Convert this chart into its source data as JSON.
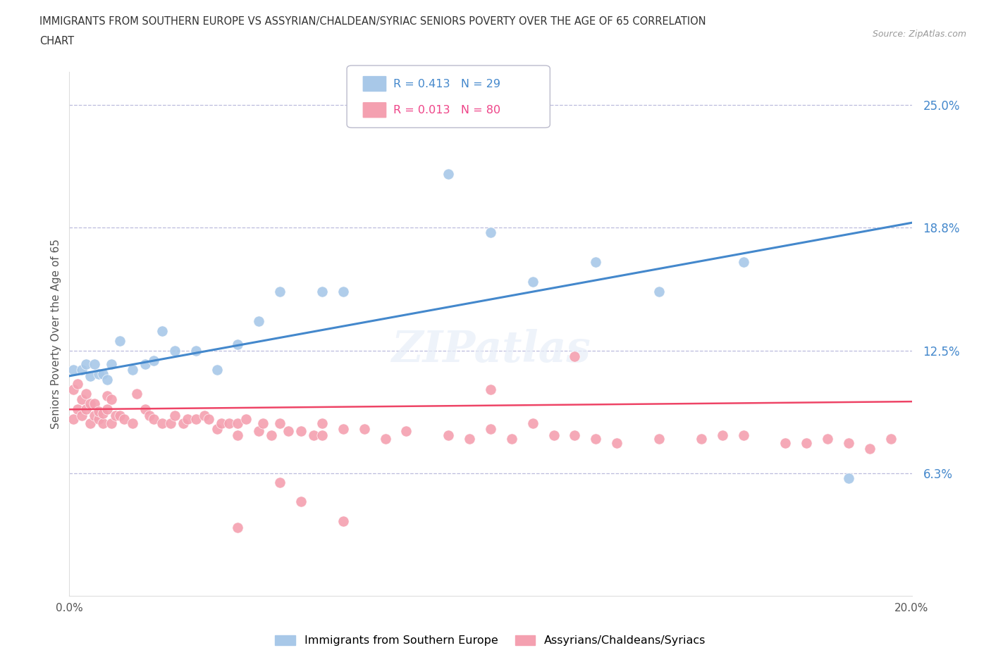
{
  "title_line1": "IMMIGRANTS FROM SOUTHERN EUROPE VS ASSYRIAN/CHALDEAN/SYRIAC SENIORS POVERTY OVER THE AGE OF 65 CORRELATION",
  "title_line2": "CHART",
  "source": "Source: ZipAtlas.com",
  "ylabel": "Seniors Poverty Over the Age of 65",
  "legend_label1": "Immigrants from Southern Europe",
  "legend_label2": "Assyrians/Chaldeans/Syriacs",
  "R1": 0.413,
  "N1": 29,
  "R2": 0.013,
  "N2": 80,
  "color1": "#a8c8e8",
  "color2": "#f4a0b0",
  "trendline1_color": "#4488cc",
  "trendline2_color": "#ee4466",
  "xmin": 0.0,
  "xmax": 0.2,
  "ymin": 0.0,
  "ymax": 0.2667,
  "yticks": [
    0.0,
    0.0625,
    0.125,
    0.1875,
    0.25
  ],
  "ytick_labels": [
    "",
    "6.3%",
    "12.5%",
    "18.8%",
    "25.0%"
  ],
  "xticks": [
    0.0,
    0.05,
    0.1,
    0.15,
    0.2
  ],
  "xtick_labels": [
    "0.0%",
    "",
    "",
    "",
    "20.0%"
  ],
  "hlines": [
    0.0625,
    0.125,
    0.1875,
    0.25
  ],
  "watermark": "ZIPatlas",
  "blue_x": [
    0.001,
    0.003,
    0.004,
    0.005,
    0.006,
    0.007,
    0.008,
    0.009,
    0.01,
    0.012,
    0.015,
    0.018,
    0.02,
    0.022,
    0.025,
    0.03,
    0.035,
    0.04,
    0.045,
    0.05,
    0.06,
    0.065,
    0.09,
    0.1,
    0.11,
    0.125,
    0.14,
    0.16,
    0.185
  ],
  "blue_y": [
    0.115,
    0.115,
    0.118,
    0.112,
    0.118,
    0.113,
    0.113,
    0.11,
    0.118,
    0.13,
    0.115,
    0.118,
    0.12,
    0.135,
    0.125,
    0.125,
    0.115,
    0.128,
    0.14,
    0.155,
    0.155,
    0.155,
    0.215,
    0.185,
    0.16,
    0.17,
    0.155,
    0.17,
    0.06
  ],
  "pink_x": [
    0.001,
    0.001,
    0.002,
    0.002,
    0.003,
    0.003,
    0.004,
    0.004,
    0.005,
    0.005,
    0.006,
    0.006,
    0.007,
    0.007,
    0.008,
    0.008,
    0.009,
    0.009,
    0.01,
    0.01,
    0.011,
    0.012,
    0.013,
    0.015,
    0.016,
    0.018,
    0.019,
    0.02,
    0.022,
    0.024,
    0.025,
    0.027,
    0.028,
    0.03,
    0.032,
    0.033,
    0.035,
    0.036,
    0.038,
    0.04,
    0.04,
    0.042,
    0.045,
    0.046,
    0.048,
    0.05,
    0.052,
    0.055,
    0.058,
    0.06,
    0.06,
    0.065,
    0.07,
    0.075,
    0.08,
    0.09,
    0.095,
    0.1,
    0.105,
    0.11,
    0.115,
    0.12,
    0.125,
    0.13,
    0.14,
    0.15,
    0.155,
    0.16,
    0.17,
    0.175,
    0.18,
    0.185,
    0.19,
    0.195,
    0.1,
    0.12,
    0.04,
    0.05,
    0.055,
    0.065
  ],
  "pink_y": [
    0.105,
    0.09,
    0.095,
    0.108,
    0.1,
    0.092,
    0.095,
    0.103,
    0.098,
    0.088,
    0.092,
    0.098,
    0.09,
    0.094,
    0.088,
    0.093,
    0.095,
    0.102,
    0.088,
    0.1,
    0.092,
    0.092,
    0.09,
    0.088,
    0.103,
    0.095,
    0.092,
    0.09,
    0.088,
    0.088,
    0.092,
    0.088,
    0.09,
    0.09,
    0.092,
    0.09,
    0.085,
    0.088,
    0.088,
    0.088,
    0.082,
    0.09,
    0.084,
    0.088,
    0.082,
    0.088,
    0.084,
    0.084,
    0.082,
    0.088,
    0.082,
    0.085,
    0.085,
    0.08,
    0.084,
    0.082,
    0.08,
    0.085,
    0.08,
    0.088,
    0.082,
    0.082,
    0.08,
    0.078,
    0.08,
    0.08,
    0.082,
    0.082,
    0.078,
    0.078,
    0.08,
    0.078,
    0.075,
    0.08,
    0.105,
    0.122,
    0.035,
    0.058,
    0.048,
    0.038
  ]
}
